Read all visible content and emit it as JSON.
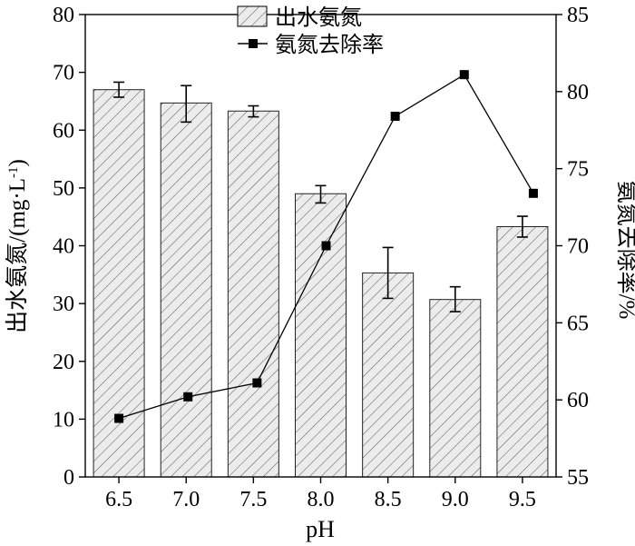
{
  "chart_data": {
    "type": "bar+line",
    "categories": [
      "6.5",
      "7.0",
      "7.5",
      "8.0",
      "8.5",
      "9.0",
      "9.5"
    ],
    "xlabel": "pH",
    "ylabel_left": "出水氨氮/(mg·L",
    "ylabel_left_sup": "-1",
    "ylabel_left_close": ")",
    "ylabel_right": "氨氮去除率/%",
    "ylim_left": [
      0,
      80
    ],
    "ylim_right": [
      55,
      85
    ],
    "yticks_left": [
      "0",
      "10",
      "20",
      "30",
      "40",
      "50",
      "60",
      "70",
      "80"
    ],
    "yticks_right": [
      "55",
      "60",
      "65",
      "70",
      "75",
      "80",
      "85"
    ],
    "series": [
      {
        "name": "出水氨氮",
        "kind": "bar",
        "pattern": "diagonal-hatch",
        "values": [
          67.0,
          64.7,
          63.3,
          49.0,
          35.3,
          30.7,
          43.3
        ],
        "error_low": [
          1.3,
          3.3,
          1.0,
          1.6,
          4.4,
          2.1,
          1.8
        ],
        "error_high": [
          1.3,
          3.0,
          0.9,
          1.4,
          4.4,
          2.2,
          1.8
        ]
      },
      {
        "name": "氨氮去除率",
        "kind": "line",
        "marker": "square",
        "axis": "right",
        "x": [
          6.5,
          7.0,
          7.5,
          8.0,
          8.5,
          9.0,
          9.5
        ],
        "values": [
          58.8,
          60.2,
          61.1,
          70.0,
          78.4,
          81.1,
          73.4
        ]
      }
    ],
    "legend": "top-center",
    "grid": false
  }
}
